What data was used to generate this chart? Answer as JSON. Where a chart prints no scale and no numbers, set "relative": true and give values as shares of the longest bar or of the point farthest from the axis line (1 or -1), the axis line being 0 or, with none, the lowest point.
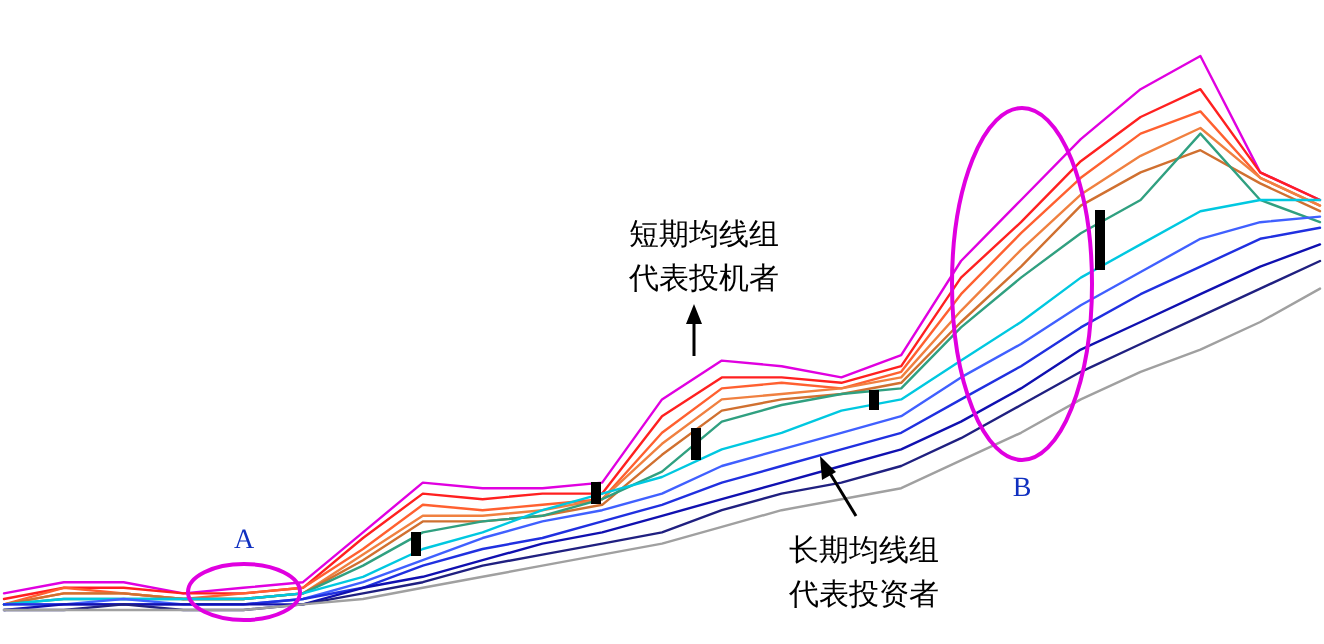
{
  "chart_data": {
    "type": "line",
    "relative": true,
    "categories": [
      null,
      null,
      null,
      null,
      null,
      null,
      null,
      null,
      null,
      null,
      null,
      null,
      null,
      null,
      null,
      null,
      null,
      null,
      null,
      null,
      null,
      null,
      null
    ],
    "series": [
      {
        "color": "#e000e0",
        "values": [
          0.03,
          0.05,
          0.05,
          0.03,
          0.04,
          0.05,
          0.14,
          0.23,
          0.22,
          0.22,
          0.23,
          0.38,
          0.45,
          0.44,
          0.42,
          0.46,
          0.63,
          0.74,
          0.85,
          0.94,
          1.0,
          0.79,
          0.74
        ]
      },
      {
        "color": "#ff2020",
        "values": [
          0.02,
          0.04,
          0.04,
          0.03,
          0.03,
          0.04,
          0.13,
          0.21,
          0.2,
          0.21,
          0.21,
          0.35,
          0.42,
          0.42,
          0.41,
          0.44,
          0.6,
          0.7,
          0.81,
          0.89,
          0.94,
          0.79,
          0.74
        ]
      },
      {
        "color": "#ff6030",
        "values": [
          0.01,
          0.04,
          0.03,
          0.02,
          0.03,
          0.04,
          0.11,
          0.19,
          0.18,
          0.19,
          0.2,
          0.32,
          0.4,
          0.41,
          0.4,
          0.43,
          0.57,
          0.68,
          0.78,
          0.86,
          0.9,
          0.78,
          0.73
        ]
      },
      {
        "color": "#f08040",
        "values": [
          0.01,
          0.03,
          0.03,
          0.02,
          0.02,
          0.03,
          0.1,
          0.17,
          0.17,
          0.18,
          0.2,
          0.3,
          0.38,
          0.39,
          0.4,
          0.42,
          0.54,
          0.65,
          0.75,
          0.82,
          0.87,
          0.78,
          0.73
        ]
      },
      {
        "color": "#d07030",
        "values": [
          0.01,
          0.03,
          0.03,
          0.02,
          0.02,
          0.03,
          0.09,
          0.16,
          0.16,
          0.17,
          0.19,
          0.28,
          0.36,
          0.38,
          0.39,
          0.41,
          0.52,
          0.62,
          0.73,
          0.79,
          0.83,
          0.77,
          0.72
        ]
      },
      {
        "color": "#30a080",
        "values": [
          0.01,
          0.02,
          0.02,
          0.02,
          0.02,
          0.03,
          0.08,
          0.14,
          0.16,
          0.17,
          0.2,
          0.25,
          0.34,
          0.37,
          0.39,
          0.4,
          0.51,
          0.6,
          0.68,
          0.74,
          0.86,
          0.74,
          0.7
        ]
      },
      {
        "color": "#00c8e0",
        "values": [
          0.01,
          0.02,
          0.02,
          0.02,
          0.02,
          0.03,
          0.06,
          0.11,
          0.14,
          0.18,
          0.21,
          0.24,
          0.29,
          0.32,
          0.36,
          0.38,
          0.45,
          0.52,
          0.6,
          0.66,
          0.72,
          0.74,
          0.74
        ]
      },
      {
        "color": "#4060ff",
        "values": [
          0.01,
          0.01,
          0.02,
          0.01,
          0.01,
          0.02,
          0.05,
          0.09,
          0.13,
          0.16,
          0.18,
          0.21,
          0.26,
          0.29,
          0.32,
          0.35,
          0.42,
          0.48,
          0.55,
          0.61,
          0.67,
          0.7,
          0.71
        ]
      },
      {
        "color": "#2030e0",
        "values": [
          0.01,
          0.01,
          0.01,
          0.01,
          0.01,
          0.02,
          0.04,
          0.08,
          0.11,
          0.13,
          0.16,
          0.19,
          0.23,
          0.26,
          0.29,
          0.32,
          0.38,
          0.44,
          0.51,
          0.57,
          0.62,
          0.67,
          0.69
        ]
      },
      {
        "color": "#1010b0",
        "values": [
          0,
          0.01,
          0.01,
          0.01,
          0.01,
          0.01,
          0.04,
          0.06,
          0.09,
          0.12,
          0.14,
          0.17,
          0.2,
          0.23,
          0.26,
          0.29,
          0.34,
          0.4,
          0.47,
          0.52,
          0.57,
          0.62,
          0.66
        ]
      },
      {
        "color": "#202080",
        "values": [
          0,
          0,
          0.01,
          0,
          0,
          0.01,
          0.03,
          0.05,
          0.08,
          0.1,
          0.12,
          0.14,
          0.18,
          0.21,
          0.23,
          0.26,
          0.31,
          0.37,
          0.43,
          0.48,
          0.53,
          0.58,
          0.63
        ]
      },
      {
        "color": "#a0a0a0",
        "values": [
          0,
          0,
          0,
          0,
          0,
          0.01,
          0.02,
          0.04,
          0.06,
          0.08,
          0.1,
          0.12,
          0.15,
          0.18,
          0.2,
          0.22,
          0.27,
          0.32,
          0.38,
          0.43,
          0.47,
          0.52,
          0.58
        ]
      }
    ],
    "annotations": [
      "短期均线组",
      "代表投机者",
      "长期均线组",
      "代表投资者",
      "A",
      "B"
    ]
  }
}
